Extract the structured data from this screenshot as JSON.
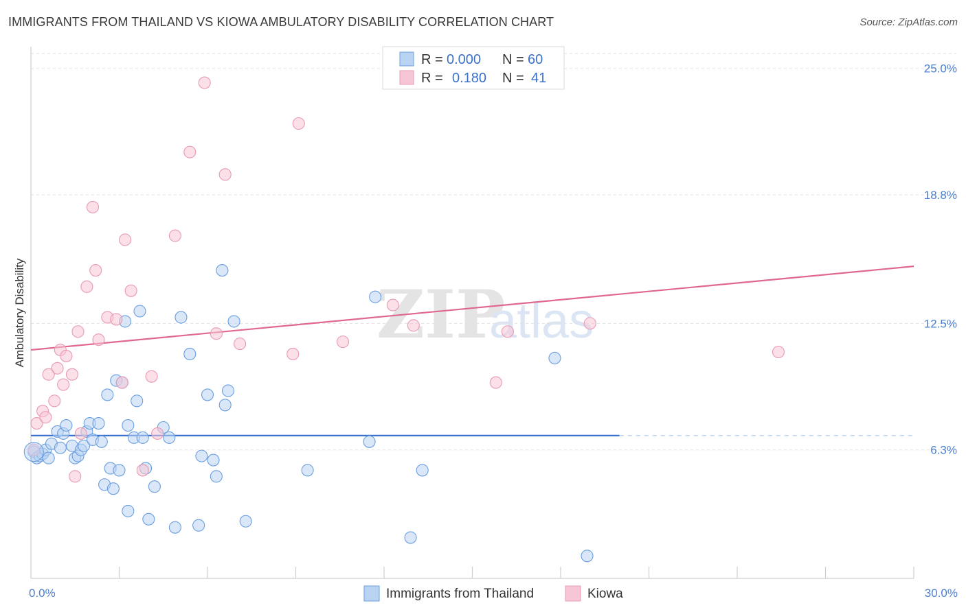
{
  "title": "IMMIGRANTS FROM THAILAND VS KIOWA AMBULATORY DISABILITY CORRELATION CHART",
  "source": "Source: ZipAtlas.com",
  "watermark": {
    "zip": "ZIP",
    "atlas": "atlas"
  },
  "chart_data": {
    "type": "scatter",
    "ylabel": "Ambulatory Disability",
    "xlim": [
      0,
      30
    ],
    "ylim": [
      0,
      26
    ],
    "y_ticks": [
      {
        "value": 6.3,
        "label": "6.3%"
      },
      {
        "value": 12.5,
        "label": "12.5%"
      },
      {
        "value": 18.8,
        "label": "18.8%"
      },
      {
        "value": 25.0,
        "label": "25.0%"
      }
    ],
    "x_tick_labels": {
      "min": "0.0%",
      "max": "30.0%"
    },
    "x_minor_ticks": [
      3,
      6,
      9,
      12,
      15,
      18,
      21,
      24,
      27,
      30
    ],
    "legend": [
      {
        "r_label": "R =",
        "r_value": "0.000",
        "n_label": "N =",
        "n_value": "60"
      },
      {
        "r_label": "R =",
        "r_value": "0.180",
        "n_label": "N =",
        "n_value": "41"
      }
    ],
    "series": [
      {
        "name": "Immigrants from Thailand",
        "color": "#6a9ee0",
        "fill": "#b9d3f3",
        "trend": {
          "x0": 0,
          "y0": 7.0,
          "x1": 20,
          "y1": 7.0,
          "dash_to": 30
        },
        "points": [
          [
            0.1,
            6.2
          ],
          [
            0.2,
            5.9
          ],
          [
            0.3,
            6.0
          ],
          [
            0.4,
            6.1
          ],
          [
            0.5,
            6.3
          ],
          [
            0.6,
            5.9
          ],
          [
            0.7,
            6.6
          ],
          [
            0.9,
            7.2
          ],
          [
            1.0,
            6.4
          ],
          [
            1.1,
            7.1
          ],
          [
            1.2,
            7.5
          ],
          [
            1.4,
            6.5
          ],
          [
            1.5,
            5.9
          ],
          [
            1.6,
            6.0
          ],
          [
            1.7,
            6.3
          ],
          [
            1.8,
            6.5
          ],
          [
            1.9,
            7.2
          ],
          [
            2.0,
            7.6
          ],
          [
            2.1,
            6.8
          ],
          [
            2.3,
            7.6
          ],
          [
            2.4,
            6.7
          ],
          [
            2.5,
            4.6
          ],
          [
            2.6,
            9.0
          ],
          [
            2.7,
            5.4
          ],
          [
            2.8,
            4.4
          ],
          [
            2.9,
            9.7
          ],
          [
            3.0,
            5.3
          ],
          [
            3.1,
            9.6
          ],
          [
            3.2,
            12.6
          ],
          [
            3.3,
            3.3
          ],
          [
            3.3,
            7.5
          ],
          [
            3.5,
            6.9
          ],
          [
            3.6,
            8.7
          ],
          [
            3.7,
            13.1
          ],
          [
            3.8,
            6.9
          ],
          [
            3.9,
            5.4
          ],
          [
            4.0,
            2.9
          ],
          [
            4.2,
            4.5
          ],
          [
            4.5,
            7.4
          ],
          [
            4.7,
            6.9
          ],
          [
            4.9,
            2.5
          ],
          [
            5.1,
            12.8
          ],
          [
            5.4,
            11.0
          ],
          [
            5.7,
            2.6
          ],
          [
            5.8,
            6.0
          ],
          [
            6.0,
            9.0
          ],
          [
            6.2,
            5.8
          ],
          [
            6.3,
            5.0
          ],
          [
            6.5,
            15.1
          ],
          [
            6.6,
            8.5
          ],
          [
            6.7,
            9.2
          ],
          [
            6.9,
            12.6
          ],
          [
            7.3,
            2.8
          ],
          [
            9.4,
            5.3
          ],
          [
            11.5,
            6.7
          ],
          [
            11.7,
            13.8
          ],
          [
            12.9,
            2.0
          ],
          [
            13.3,
            5.3
          ],
          [
            17.8,
            10.8
          ],
          [
            18.9,
            1.1
          ]
        ]
      },
      {
        "name": "Kiowa",
        "color": "#e899b4",
        "fill": "#f7c6d6",
        "trend": {
          "x0": 0,
          "y0": 11.2,
          "x1": 30,
          "y1": 15.3
        },
        "points": [
          [
            0.1,
            6.3
          ],
          [
            0.2,
            7.6
          ],
          [
            0.4,
            8.2
          ],
          [
            0.5,
            7.9
          ],
          [
            0.6,
            10.0
          ],
          [
            0.8,
            8.7
          ],
          [
            0.9,
            10.3
          ],
          [
            1.0,
            11.2
          ],
          [
            1.1,
            9.5
          ],
          [
            1.2,
            10.9
          ],
          [
            1.4,
            10.0
          ],
          [
            1.5,
            5.0
          ],
          [
            1.6,
            12.1
          ],
          [
            1.7,
            7.1
          ],
          [
            1.9,
            14.3
          ],
          [
            2.1,
            18.2
          ],
          [
            2.2,
            15.1
          ],
          [
            2.3,
            11.7
          ],
          [
            2.6,
            12.8
          ],
          [
            2.9,
            12.7
          ],
          [
            3.1,
            9.6
          ],
          [
            3.2,
            16.6
          ],
          [
            3.4,
            14.1
          ],
          [
            3.8,
            5.3
          ],
          [
            4.1,
            9.9
          ],
          [
            4.3,
            7.1
          ],
          [
            4.9,
            16.8
          ],
          [
            5.4,
            20.9
          ],
          [
            5.9,
            24.3
          ],
          [
            6.3,
            12.0
          ],
          [
            6.6,
            19.8
          ],
          [
            7.1,
            11.5
          ],
          [
            8.9,
            11.0
          ],
          [
            9.1,
            22.3
          ],
          [
            10.6,
            11.6
          ],
          [
            12.3,
            13.4
          ],
          [
            13.0,
            12.4
          ],
          [
            15.8,
            9.6
          ],
          [
            16.2,
            12.1
          ],
          [
            19.0,
            12.5
          ],
          [
            25.4,
            11.1
          ]
        ]
      }
    ]
  }
}
